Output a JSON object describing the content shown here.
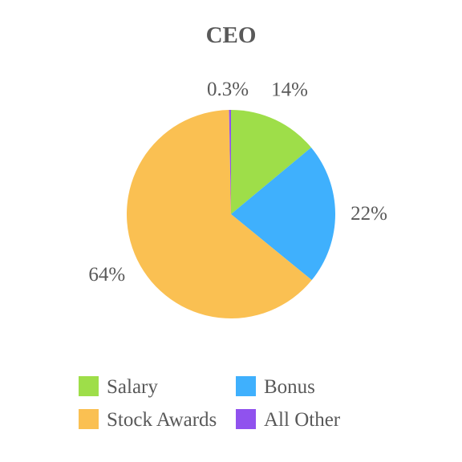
{
  "chart_data": {
    "type": "pie",
    "title": "CEO",
    "categories": [
      "Salary",
      "Bonus",
      "Stock Awards",
      "All Other"
    ],
    "values": [
      14,
      22,
      64,
      0.3
    ],
    "labels": [
      "14%",
      "22%",
      "64%",
      "0.3%"
    ],
    "colors": [
      "#9ede49",
      "#3fb0fd",
      "#fac052",
      "#9052ee"
    ],
    "start_angle": "12 o'clock",
    "direction": "clockwise",
    "legend_position": "bottom"
  }
}
